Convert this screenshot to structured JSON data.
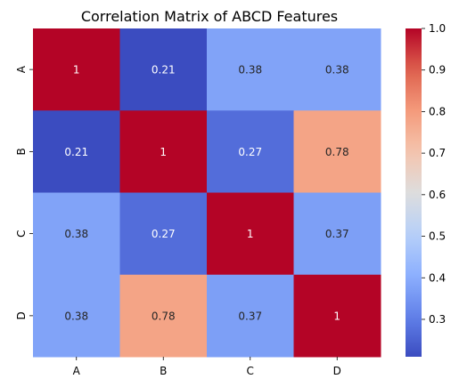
{
  "chart_data": {
    "type": "heatmap",
    "title": "Correlation Matrix of ABCD Features",
    "x_labels": [
      "A",
      "B",
      "C",
      "D"
    ],
    "y_labels": [
      "A",
      "B",
      "C",
      "D"
    ],
    "values": [
      [
        1.0,
        0.21,
        0.38,
        0.38
      ],
      [
        0.21,
        1.0,
        0.27,
        0.78
      ],
      [
        0.38,
        0.27,
        1.0,
        0.37
      ],
      [
        0.38,
        0.78,
        0.37,
        1.0
      ]
    ],
    "annotations": [
      [
        "1",
        "0.21",
        "0.38",
        "0.38"
      ],
      [
        "0.21",
        "1",
        "0.27",
        "0.78"
      ],
      [
        "0.38",
        "0.27",
        "1",
        "0.37"
      ],
      [
        "0.38",
        "0.78",
        "0.37",
        "1"
      ]
    ],
    "colorbar": {
      "vmin": 0.21,
      "vmax": 1.0,
      "ticks": [
        0.3,
        0.4,
        0.5,
        0.6,
        0.7,
        0.8,
        0.9,
        1.0
      ],
      "tick_labels": [
        "0.3",
        "0.4",
        "0.5",
        "0.6",
        "0.7",
        "0.8",
        "0.9",
        "1.0"
      ]
    },
    "colormap": "coolwarm",
    "grid": false,
    "legend": "colorbar-right"
  }
}
